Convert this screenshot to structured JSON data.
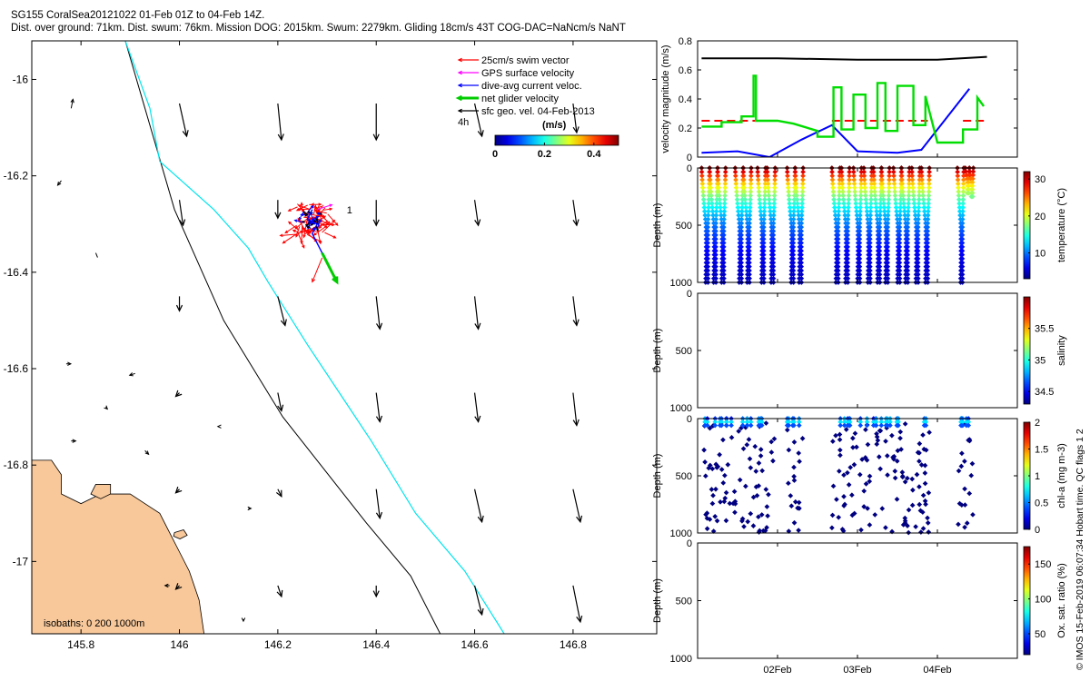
{
  "header": {
    "line1": "SG155 CoralSea20121022 01-Feb 01Z to 04-Feb 14Z.",
    "line2": "Dist. over ground: 71km. Dist. swum: 76km. Mission DOG: 2015km. Swum: 2279km. Gliding 18cm/s 43T COG-DAC=NaNcm/s NaNT"
  },
  "copyright": "© IMOS 15-Feb-2019 06:07:34 Hobart time. QC flags 1  2",
  "colors": {
    "swim_vector": "#ff0000",
    "gps_velocity": "#ff00ff",
    "current_velocity": "#0000ff",
    "net_velocity": "#00cc00",
    "geo_velocity": "#000000",
    "isobath_200": "#000000",
    "isobath_1000": "#00e5ee",
    "land": "#f8c89a",
    "threshold_line": "#ff0000"
  },
  "chart_data": [
    {
      "type": "scatter",
      "subtype": "map",
      "x_ticks": [
        "145.8",
        "146",
        "146.2",
        "146.4",
        "146.6",
        "146.8"
      ],
      "y_ticks": [
        "-16",
        "-16.2",
        "-16.4",
        "-16.6",
        "-16.8",
        "-17"
      ],
      "xlim": [
        145.7,
        146.97
      ],
      "ylim": [
        -17.15,
        -15.92
      ],
      "legend": {
        "position": "top-right",
        "entries": [
          "25cm/s swim vector",
          "GPS surface velocity",
          "dive-avg current veloc.",
          "net glider velocity",
          "sfc geo. vel. 04-Feb-2013"
        ],
        "scale_label": "4h"
      },
      "colorbar": {
        "label": "(m/s)",
        "ticks": [
          "0",
          "0.2",
          "0.4"
        ],
        "range": [
          0,
          0.5
        ]
      },
      "isobaths_label": "isobaths: 0   200  1000m",
      "annotation": "1",
      "track": [
        [
          146.27,
          -16.27
        ],
        [
          146.26,
          -16.29
        ],
        [
          146.28,
          -16.3
        ],
        [
          146.27,
          -16.32
        ],
        [
          146.28,
          -16.34
        ],
        [
          146.29,
          -16.36
        ],
        [
          146.3,
          -16.38
        ]
      ],
      "isobath_200": [
        [
          145.89,
          -15.92
        ],
        [
          145.93,
          -16.06
        ],
        [
          145.99,
          -16.27
        ],
        [
          146.09,
          -16.5
        ],
        [
          146.21,
          -16.7
        ],
        [
          146.38,
          -16.92
        ],
        [
          146.47,
          -17.03
        ],
        [
          146.53,
          -17.15
        ]
      ],
      "isobath_1000": [
        [
          145.89,
          -15.92
        ],
        [
          145.94,
          -16.06
        ],
        [
          145.96,
          -16.17
        ],
        [
          146.07,
          -16.27
        ],
        [
          146.14,
          -16.35
        ],
        [
          146.18,
          -16.42
        ],
        [
          146.26,
          -16.55
        ],
        [
          146.39,
          -16.75
        ],
        [
          146.48,
          -16.9
        ],
        [
          146.58,
          -17.02
        ],
        [
          146.66,
          -17.15
        ]
      ],
      "geo_velocity_grid": {
        "lon": [
          146.0,
          146.2,
          146.4,
          146.6,
          146.8
        ],
        "lat": [
          -16.05,
          -16.25,
          -16.45,
          -16.65,
          -16.85,
          -17.05
        ],
        "u_cm_s": [
          [
            2,
            1,
            0,
            2,
            1
          ],
          [
            1,
            0,
            0,
            1,
            1
          ],
          [
            0,
            2,
            1,
            1,
            1
          ],
          [
            -1,
            1,
            1,
            1,
            1
          ],
          [
            -1,
            1,
            1,
            2,
            2
          ],
          [
            -1,
            1,
            0,
            2,
            2
          ]
        ],
        "v_cm_s": [
          [
            -9,
            -10,
            -10,
            -9,
            -8
          ],
          [
            -7,
            -5,
            -7,
            -7,
            -7
          ],
          [
            -4,
            -8,
            -9,
            -9,
            -8
          ],
          [
            -1,
            -5,
            -8,
            -8,
            -9
          ],
          [
            -1,
            -2,
            -8,
            -9,
            -9
          ],
          [
            -1,
            -3,
            -3,
            -8,
            -10
          ]
        ]
      }
    },
    {
      "type": "line",
      "ylabel": "velocity magnitude (m/s)",
      "ylim": [
        0,
        0.8
      ],
      "y_ticks": [
        "0",
        "0.2",
        "0.4",
        "0.6",
        "0.8"
      ],
      "x_ticks": [
        "02Feb",
        "03Feb",
        "04Feb"
      ],
      "x_day_range": [
        31.0,
        35.0
      ],
      "series": [
        {
          "color": "#000000",
          "x": [
            31.05,
            32.0,
            33.0,
            34.0,
            34.62
          ],
          "y": [
            0.68,
            0.68,
            0.67,
            0.67,
            0.69
          ]
        },
        {
          "color": "#ff0000",
          "dashed": true,
          "x": [
            31.05,
            31.95
          ],
          "y": [
            0.25,
            0.25
          ]
        },
        {
          "color": "#ff0000",
          "dashed": true,
          "x": [
            32.68,
            33.88
          ],
          "y": [
            0.25,
            0.25
          ]
        },
        {
          "color": "#ff0000",
          "dashed": true,
          "x": [
            34.32,
            34.62
          ],
          "y": [
            0.25,
            0.25
          ]
        },
        {
          "color": "#0000ff",
          "x": [
            31.05,
            31.5,
            31.9,
            32.3,
            32.68,
            33.0,
            33.5,
            33.8,
            34.4
          ],
          "y": [
            0.03,
            0.04,
            0.0,
            0.12,
            0.22,
            0.04,
            0.03,
            0.05,
            0.47
          ]
        },
        {
          "color": "#00dd00",
          "x": [
            31.05,
            31.3,
            31.3,
            31.55,
            31.55,
            31.7,
            31.7,
            31.73,
            31.73,
            32.0,
            32.2,
            32.5,
            32.5,
            32.7,
            32.7,
            32.8,
            32.8,
            32.95,
            32.95,
            33.1,
            33.1,
            33.25,
            33.25,
            33.35,
            33.35,
            33.5,
            33.5,
            33.7,
            33.7,
            33.85,
            33.85,
            34.0,
            34.2,
            34.32,
            34.32,
            34.5,
            34.5,
            34.58
          ],
          "y": [
            0.21,
            0.21,
            0.24,
            0.24,
            0.28,
            0.28,
            0.56,
            0.56,
            0.25,
            0.25,
            0.23,
            0.18,
            0.14,
            0.14,
            0.48,
            0.48,
            0.19,
            0.19,
            0.43,
            0.43,
            0.2,
            0.2,
            0.51,
            0.51,
            0.18,
            0.18,
            0.49,
            0.49,
            0.22,
            0.22,
            0.42,
            0.1,
            0.1,
            0.1,
            0.19,
            0.19,
            0.41,
            0.35
          ]
        }
      ]
    },
    {
      "type": "scatter",
      "variable": "temperature",
      "ylabel": "Depth (m)",
      "clabel": "temperature (°C)",
      "ylim": [
        1000,
        0
      ],
      "y_ticks": [
        "0",
        "500",
        "1000"
      ],
      "c_ticks": [
        "10",
        "20",
        "30"
      ],
      "c_range": [
        3,
        32
      ],
      "dives": [
        {
          "start": 31.05,
          "end": 31.15,
          "max_depth": 1000
        },
        {
          "start": 31.15,
          "end": 31.25,
          "max_depth": 1000
        },
        {
          "start": 31.25,
          "end": 31.35,
          "max_depth": 1000
        },
        {
          "start": 31.47,
          "end": 31.57,
          "max_depth": 1000
        },
        {
          "start": 31.57,
          "end": 31.67,
          "max_depth": 1000
        },
        {
          "start": 31.75,
          "end": 31.85,
          "max_depth": 1000
        },
        {
          "start": 31.87,
          "end": 31.97,
          "max_depth": 1000
        },
        {
          "start": 32.12,
          "end": 32.22,
          "max_depth": 1000
        },
        {
          "start": 32.22,
          "end": 32.32,
          "max_depth": 1000
        },
        {
          "start": 32.68,
          "end": 32.78,
          "max_depth": 1000
        },
        {
          "start": 32.8,
          "end": 32.9,
          "max_depth": 1000
        },
        {
          "start": 32.95,
          "end": 33.05,
          "max_depth": 1000
        },
        {
          "start": 33.08,
          "end": 33.18,
          "max_depth": 1000
        },
        {
          "start": 33.2,
          "end": 33.3,
          "max_depth": 1000
        },
        {
          "start": 33.3,
          "end": 33.4,
          "max_depth": 1000
        },
        {
          "start": 33.45,
          "end": 33.55,
          "max_depth": 1000
        },
        {
          "start": 33.55,
          "end": 33.65,
          "max_depth": 1000
        },
        {
          "start": 33.68,
          "end": 33.78,
          "max_depth": 1000
        },
        {
          "start": 33.8,
          "end": 33.9,
          "max_depth": 1000
        },
        {
          "start": 34.25,
          "end": 34.33,
          "max_depth": 1000
        },
        {
          "start": 34.35,
          "end": 34.4,
          "max_depth": 220
        },
        {
          "start": 34.4,
          "end": 34.45,
          "max_depth": 250
        }
      ]
    },
    {
      "type": "scatter",
      "variable": "salinity",
      "ylabel": "Depth (m)",
      "clabel": "salinity",
      "ylim": [
        1000,
        0
      ],
      "y_ticks": [
        "0",
        "500",
        "1000"
      ],
      "c_ticks": [
        "34.5",
        "35",
        "35.5"
      ],
      "c_range": [
        34.3,
        36.0
      ]
    },
    {
      "type": "scatter",
      "variable": "chl-a",
      "ylabel": "Depth (m)",
      "clabel": "chl-a (mg m-3)",
      "ylim": [
        1000,
        0
      ],
      "y_ticks": [
        "0",
        "500",
        "1000"
      ],
      "c_ticks": [
        "0",
        "0.5",
        "1",
        "1.5",
        "2"
      ],
      "c_range": [
        0,
        2
      ]
    },
    {
      "type": "scatter",
      "variable": "oxygen",
      "ylabel": "Depth (m)",
      "clabel": "Ox. sat. ratio (%)",
      "ylim": [
        1000,
        0
      ],
      "y_ticks": [
        "0",
        "500",
        "1000"
      ],
      "c_ticks": [
        "50",
        "100",
        "150"
      ],
      "c_range": [
        20,
        175
      ]
    }
  ]
}
